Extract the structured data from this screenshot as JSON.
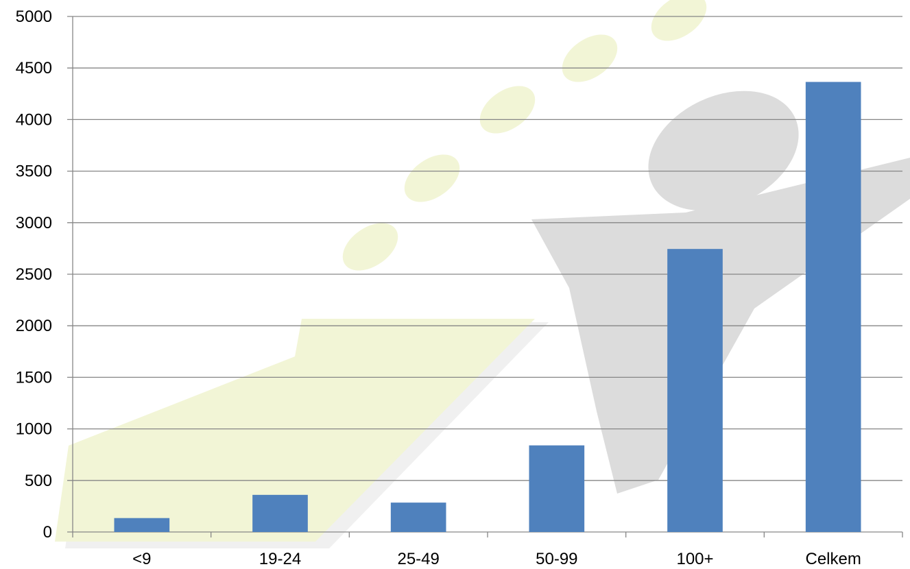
{
  "chart_data": {
    "type": "bar",
    "categories": [
      "<9",
      "19-24",
      "25-49",
      "50-99",
      "100+",
      "Celkem"
    ],
    "values": [
      135,
      360,
      285,
      840,
      2745,
      4365
    ],
    "ylim": [
      0,
      5000
    ],
    "yticks": [
      0,
      500,
      1000,
      1500,
      2000,
      2500,
      3000,
      3500,
      4000,
      4500,
      5000
    ],
    "grid": true,
    "legend": "none",
    "bar_color": "#4f81bd",
    "gridline_color": "#868686"
  },
  "watermark": {
    "arrow_color": "#eef2c8",
    "figure_color": "#d9d9d9"
  }
}
